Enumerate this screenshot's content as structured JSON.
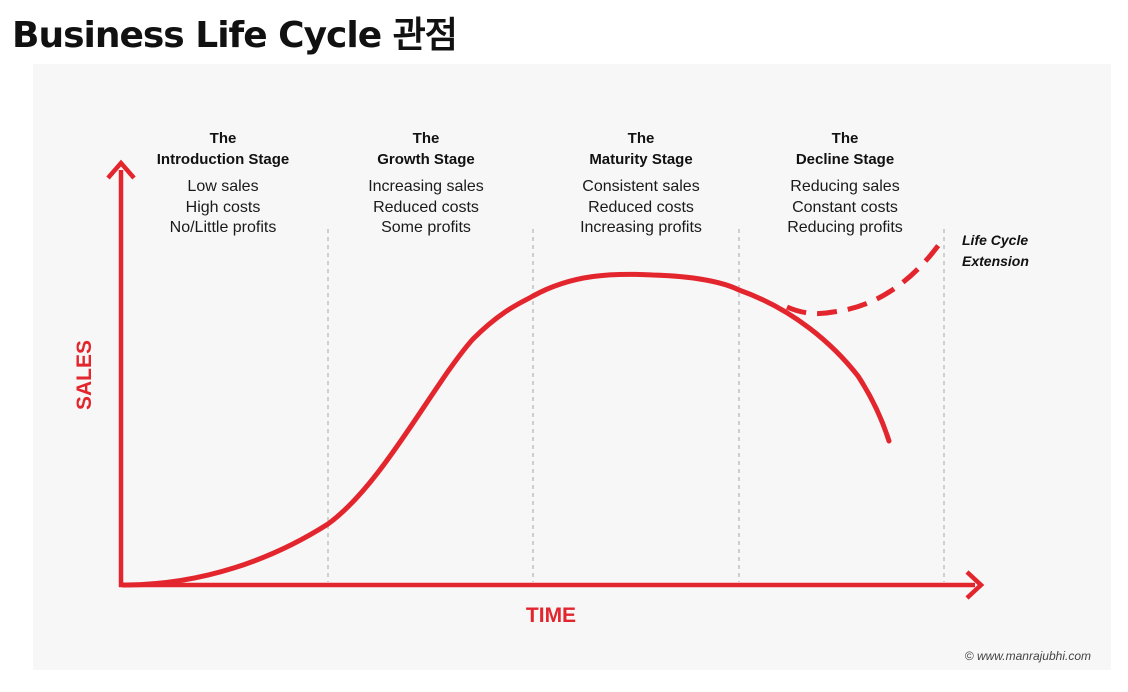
{
  "page": {
    "title": "Business Life Cycle 관점"
  },
  "diagram": {
    "colors": {
      "accent": "#e3262e",
      "divider": "#b5b5b5",
      "panel": "#f7f7f7"
    },
    "axes": {
      "y_label": "SALES",
      "x_label": "TIME"
    },
    "stages": [
      {
        "heading_1": "The",
        "heading_2": "Introduction Stage",
        "lines": [
          "Low sales",
          "High costs",
          "No/Little profits"
        ]
      },
      {
        "heading_1": "The",
        "heading_2": "Growth Stage",
        "lines": [
          "Increasing sales",
          "Reduced costs",
          "Some profits"
        ]
      },
      {
        "heading_1": "The",
        "heading_2": "Maturity Stage",
        "lines": [
          "Consistent sales",
          "Reduced costs",
          "Increasing profits"
        ]
      },
      {
        "heading_1": "The",
        "heading_2": "Decline Stage",
        "lines": [
          "Reducing sales",
          "Constant costs",
          "Reducing profits"
        ]
      }
    ],
    "extension": {
      "line_1": "Life Cycle",
      "line_2": "Extension"
    },
    "credit": "© www.manrajubhi.com"
  }
}
